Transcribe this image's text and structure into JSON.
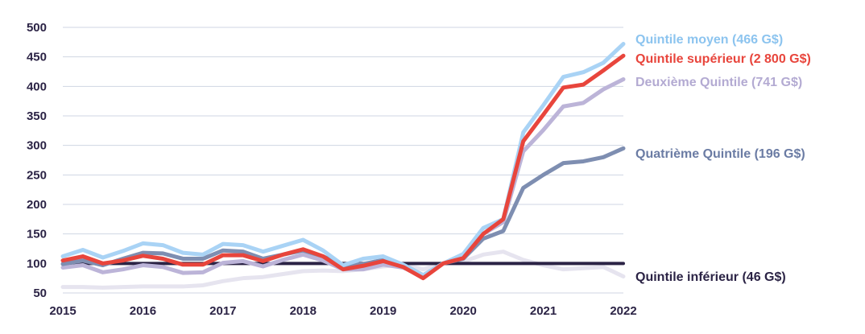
{
  "chart_data": {
    "type": "line",
    "title": "",
    "xlabel": "",
    "ylabel": "",
    "xlim": [
      2015,
      2022
    ],
    "ylim": [
      50,
      500
    ],
    "yticks": [
      50,
      100,
      150,
      200,
      250,
      300,
      350,
      400,
      450,
      500
    ],
    "xticks": [
      2015,
      2016,
      2017,
      2018,
      2019,
      2020,
      2021,
      2022
    ],
    "grid": true,
    "legend": "direct labels at right",
    "x": [
      2015.0,
      2015.25,
      2015.5,
      2015.75,
      2016.0,
      2016.25,
      2016.5,
      2016.75,
      2017.0,
      2017.25,
      2017.5,
      2017.75,
      2018.0,
      2018.25,
      2018.5,
      2018.75,
      2019.0,
      2019.25,
      2019.5,
      2019.75,
      2020.0,
      2020.25,
      2020.5,
      2020.75,
      2021.0,
      2021.25,
      2021.5,
      2021.75,
      2022.0
    ],
    "series": [
      {
        "name": "Quintile moyen (466 G$)",
        "color": "#a9d3f5",
        "values": [
          112,
          123,
          110,
          121,
          134,
          131,
          118,
          115,
          133,
          131,
          120,
          130,
          140,
          122,
          97,
          108,
          112,
          98,
          80,
          100,
          116,
          160,
          175,
          322,
          368,
          416,
          424,
          440,
          472
        ]
      },
      {
        "name": "Quintile supérieur (2 800 G$)",
        "color": "#e8453c",
        "values": [
          105,
          112,
          100,
          105,
          113,
          108,
          98,
          98,
          114,
          114,
          104,
          115,
          124,
          112,
          90,
          96,
          104,
          94,
          75,
          100,
          109,
          150,
          175,
          307,
          352,
          398,
          403,
          427,
          452
        ]
      },
      {
        "name": "Deuxième Quintile (741 G$)",
        "color": "#bcb4d8",
        "values": [
          93,
          97,
          85,
          90,
          97,
          94,
          84,
          85,
          101,
          104,
          95,
          106,
          115,
          105,
          90,
          90,
          98,
          93,
          78,
          100,
          112,
          150,
          170,
          290,
          326,
          366,
          372,
          395,
          412
        ]
      },
      {
        "name": "Quatrième Quintile (196 G$)",
        "color": "#7e8eb1",
        "values": [
          99,
          105,
          97,
          108,
          118,
          117,
          108,
          108,
          122,
          120,
          108,
          115,
          122,
          112,
          97,
          99,
          106,
          98,
          80,
          100,
          108,
          142,
          155,
          228,
          250,
          270,
          273,
          280,
          295
        ]
      },
      {
        "name": "Quintile inférieur (46 G$)",
        "color": "#2b2345",
        "values": [
          100,
          100,
          100,
          100,
          100,
          100,
          100,
          100,
          100,
          100,
          100,
          100,
          100,
          100,
          100,
          100,
          100,
          100,
          100,
          100,
          100,
          100,
          100,
          100,
          100,
          100,
          100,
          100,
          100
        ]
      },
      {
        "name": "",
        "color": "#e6e4ef",
        "values": [
          60,
          60,
          59,
          60,
          61,
          61,
          61,
          63,
          70,
          75,
          77,
          82,
          87,
          88,
          87,
          90,
          95,
          98,
          90,
          100,
          103,
          115,
          120,
          106,
          97,
          90,
          92,
          94,
          78
        ]
      }
    ]
  }
}
